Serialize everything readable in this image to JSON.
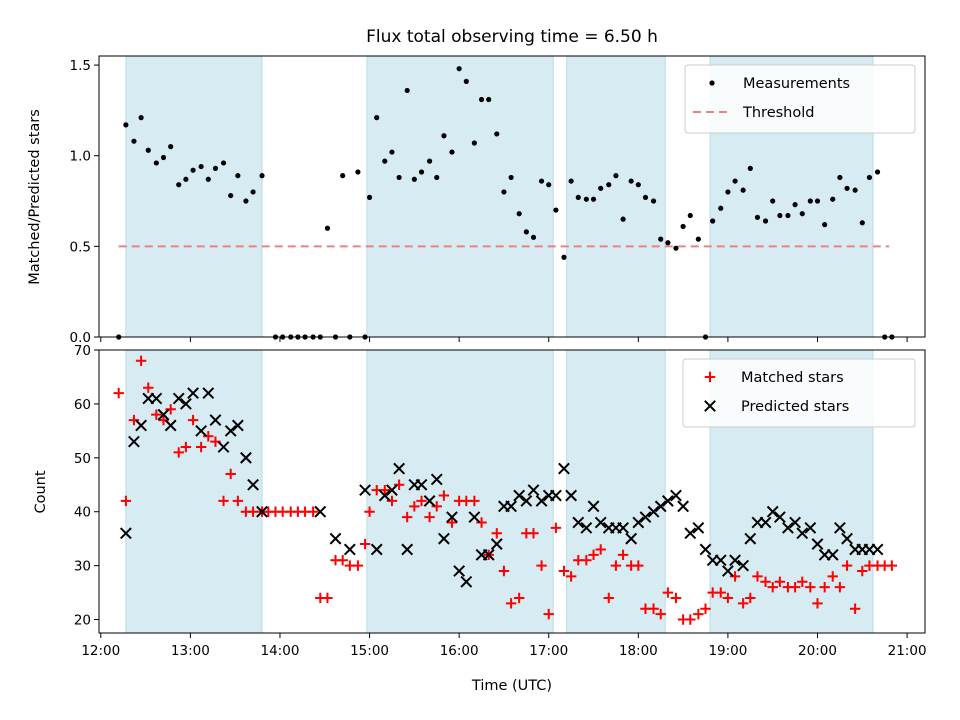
{
  "chart_data": {
    "title": "Flux total observing time = 6.50 h",
    "xlabel": "Time (UTC)",
    "x_ticks": [
      "12:00",
      "13:00",
      "14:00",
      "15:00",
      "16:00",
      "17:00",
      "18:00",
      "19:00",
      "20:00",
      "21:00"
    ],
    "xlim": [
      11.98,
      21.2
    ],
    "shaded_intervals": [
      [
        12.28,
        13.8
      ],
      [
        14.97,
        17.05
      ],
      [
        17.2,
        18.3
      ],
      [
        18.8,
        20.62
      ]
    ],
    "shade_color": "#add8e6",
    "panels": [
      {
        "type": "scatter",
        "ylabel": "Matched/Predicted stars",
        "ylim": [
          0,
          1.55
        ],
        "y_ticks": [
          "0.0",
          "0.5",
          "1.0",
          "1.5"
        ],
        "legend": "top-right",
        "threshold": {
          "name": "Threshold",
          "value": 0.5,
          "x": [
            12.2,
            20.8
          ],
          "color": "#f08080"
        },
        "series": [
          {
            "name": "Measurements",
            "color": "#000000",
            "marker": "dot",
            "x": [
              12.2,
              12.28,
              12.37,
              12.45,
              12.53,
              12.62,
              12.7,
              12.78,
              12.87,
              12.95,
              13.03,
              13.12,
              13.2,
              13.28,
              13.37,
              13.45,
              13.53,
              13.62,
              13.7,
              13.8,
              13.95,
              14.03,
              14.12,
              14.2,
              14.28,
              14.37,
              14.45,
              14.53,
              14.62,
              14.7,
              14.78,
              14.87,
              14.95,
              15.0,
              15.08,
              15.17,
              15.25,
              15.33,
              15.42,
              15.5,
              15.58,
              15.67,
              15.75,
              15.83,
              15.92,
              16.0,
              16.08,
              16.17,
              16.25,
              16.33,
              16.42,
              16.5,
              16.58,
              16.67,
              16.75,
              16.83,
              16.92,
              17.0,
              17.08,
              17.17,
              17.25,
              17.33,
              17.42,
              17.5,
              17.58,
              17.67,
              17.75,
              17.83,
              17.92,
              18.0,
              18.08,
              18.17,
              18.25,
              18.33,
              18.42,
              18.5,
              18.58,
              18.67,
              18.75,
              18.83,
              18.92,
              19.0,
              19.08,
              19.17,
              19.25,
              19.33,
              19.42,
              19.5,
              19.58,
              19.67,
              19.75,
              19.83,
              19.92,
              20.0,
              20.08,
              20.17,
              20.25,
              20.33,
              20.42,
              20.5,
              20.58,
              20.67,
              20.75,
              20.83
            ],
            "y": [
              0.0,
              1.17,
              1.08,
              1.21,
              1.03,
              0.96,
              0.99,
              1.05,
              0.84,
              0.87,
              0.92,
              0.94,
              0.87,
              0.93,
              0.96,
              0.78,
              0.89,
              0.75,
              0.8,
              0.89,
              0.0,
              0.0,
              0.0,
              0.0,
              0.0,
              0.0,
              0.0,
              0.6,
              0.0,
              0.89,
              0.0,
              0.91,
              0.0,
              0.77,
              1.21,
              0.97,
              1.02,
              0.88,
              1.36,
              0.87,
              0.91,
              0.97,
              0.88,
              1.11,
              1.02,
              1.48,
              1.41,
              1.07,
              1.31,
              1.31,
              1.12,
              0.8,
              0.88,
              0.68,
              0.58,
              0.55,
              0.86,
              0.84,
              0.7,
              0.44,
              0.86,
              0.77,
              0.76,
              0.76,
              0.82,
              0.84,
              0.89,
              0.65,
              0.86,
              0.84,
              0.77,
              0.75,
              0.54,
              0.52,
              0.49,
              0.61,
              0.67,
              0.54,
              0.0,
              0.64,
              0.71,
              0.8,
              0.86,
              0.81,
              0.93,
              0.66,
              0.64,
              0.75,
              0.67,
              0.67,
              0.73,
              0.68,
              0.75,
              0.75,
              0.62,
              0.76,
              0.88,
              0.82,
              0.81,
              0.63,
              0.88,
              0.91,
              0.0,
              0.0
            ]
          }
        ]
      },
      {
        "type": "scatter",
        "ylabel": "Count",
        "ylim": [
          17.5,
          70
        ],
        "y_ticks": [
          "20",
          "30",
          "40",
          "50",
          "60",
          "70"
        ],
        "legend": "top-right",
        "series": [
          {
            "name": "Matched stars",
            "color": "#ff0000",
            "marker": "plus",
            "x": [
              12.2,
              12.28,
              12.37,
              12.45,
              12.53,
              12.62,
              12.7,
              12.78,
              12.87,
              12.95,
              13.03,
              13.12,
              13.2,
              13.28,
              13.37,
              13.45,
              13.53,
              13.62,
              13.7,
              13.8,
              13.87,
              13.95,
              14.03,
              14.12,
              14.2,
              14.28,
              14.37,
              14.45,
              14.53,
              14.62,
              14.7,
              14.78,
              14.87,
              14.95,
              15.0,
              15.08,
              15.17,
              15.25,
              15.33,
              15.42,
              15.5,
              15.58,
              15.67,
              15.75,
              15.83,
              15.92,
              16.0,
              16.08,
              16.17,
              16.25,
              16.33,
              16.42,
              16.5,
              16.58,
              16.67,
              16.75,
              16.83,
              16.92,
              17.0,
              17.08,
              17.17,
              17.25,
              17.33,
              17.42,
              17.5,
              17.58,
              17.67,
              17.75,
              17.83,
              17.92,
              18.0,
              18.08,
              18.17,
              18.25,
              18.33,
              18.42,
              18.5,
              18.58,
              18.67,
              18.75,
              18.83,
              18.92,
              19.0,
              19.08,
              19.17,
              19.25,
              19.33,
              19.42,
              19.5,
              19.58,
              19.67,
              19.75,
              19.83,
              19.92,
              20.0,
              20.08,
              20.17,
              20.25,
              20.33,
              20.42,
              20.5,
              20.58,
              20.67,
              20.75,
              20.83
            ],
            "y": [
              62,
              42,
              57,
              68,
              63,
              58,
              57,
              59,
              51,
              52,
              57,
              52,
              54,
              53,
              42,
              47,
              42,
              40,
              40,
              40,
              40,
              40,
              40,
              40,
              40,
              40,
              40,
              24,
              24,
              31,
              31,
              30,
              30,
              34,
              40,
              44,
              44,
              42,
              45,
              39,
              41,
              42,
              39,
              41,
              43,
              38,
              42,
              42,
              42,
              38,
              32,
              36,
              29,
              23,
              24,
              36,
              36,
              30,
              21,
              37,
              29,
              28,
              31,
              31,
              32,
              33,
              24,
              30,
              32,
              30,
              30,
              22,
              22,
              21,
              25,
              24,
              20,
              20,
              21,
              22,
              25,
              25,
              24,
              28,
              23,
              24,
              28,
              27,
              26,
              27,
              26,
              26,
              27,
              26,
              23,
              26,
              28,
              26,
              30,
              22,
              29,
              30,
              30,
              30,
              30
            ]
          },
          {
            "name": "Predicted stars",
            "color": "#000000",
            "marker": "x",
            "x": [
              12.28,
              12.37,
              12.45,
              12.53,
              12.62,
              12.7,
              12.78,
              12.87,
              12.95,
              13.03,
              13.12,
              13.2,
              13.28,
              13.37,
              13.45,
              13.53,
              13.62,
              13.7,
              13.8,
              14.45,
              14.62,
              14.78,
              14.95,
              15.08,
              15.17,
              15.25,
              15.33,
              15.42,
              15.5,
              15.58,
              15.67,
              15.75,
              15.83,
              15.92,
              16.0,
              16.08,
              16.17,
              16.25,
              16.33,
              16.42,
              16.5,
              16.58,
              16.67,
              16.75,
              16.83,
              16.92,
              17.0,
              17.08,
              17.17,
              17.25,
              17.33,
              17.42,
              17.5,
              17.58,
              17.67,
              17.75,
              17.83,
              17.92,
              18.0,
              18.08,
              18.17,
              18.25,
              18.33,
              18.42,
              18.5,
              18.58,
              18.67,
              18.75,
              18.83,
              18.92,
              19.0,
              19.08,
              19.17,
              19.25,
              19.33,
              19.42,
              19.5,
              19.58,
              19.67,
              19.75,
              19.83,
              19.92,
              20.0,
              20.08,
              20.17,
              20.25,
              20.33,
              20.42,
              20.5,
              20.58,
              20.67
            ],
            "y": [
              36,
              53,
              56,
              61,
              61,
              58,
              56,
              61,
              60,
              62,
              55,
              62,
              57,
              52,
              55,
              56,
              50,
              45,
              40,
              40,
              35,
              33,
              44,
              33,
              43,
              44,
              48,
              33,
              45,
              45,
              42,
              46,
              35,
              39,
              29,
              27,
              39,
              32,
              32,
              34,
              41,
              41,
              43,
              42,
              44,
              42,
              43,
              43,
              48,
              43,
              38,
              37,
              41,
              38,
              37,
              37,
              37,
              35,
              38,
              39,
              40,
              41,
              42,
              43,
              41,
              36,
              37,
              33,
              31,
              31,
              29,
              31,
              30,
              35,
              38,
              38,
              40,
              39,
              37,
              38,
              36,
              37,
              34,
              32,
              32,
              37,
              35,
              33,
              33,
              33,
              33
            ]
          }
        ]
      }
    ]
  }
}
